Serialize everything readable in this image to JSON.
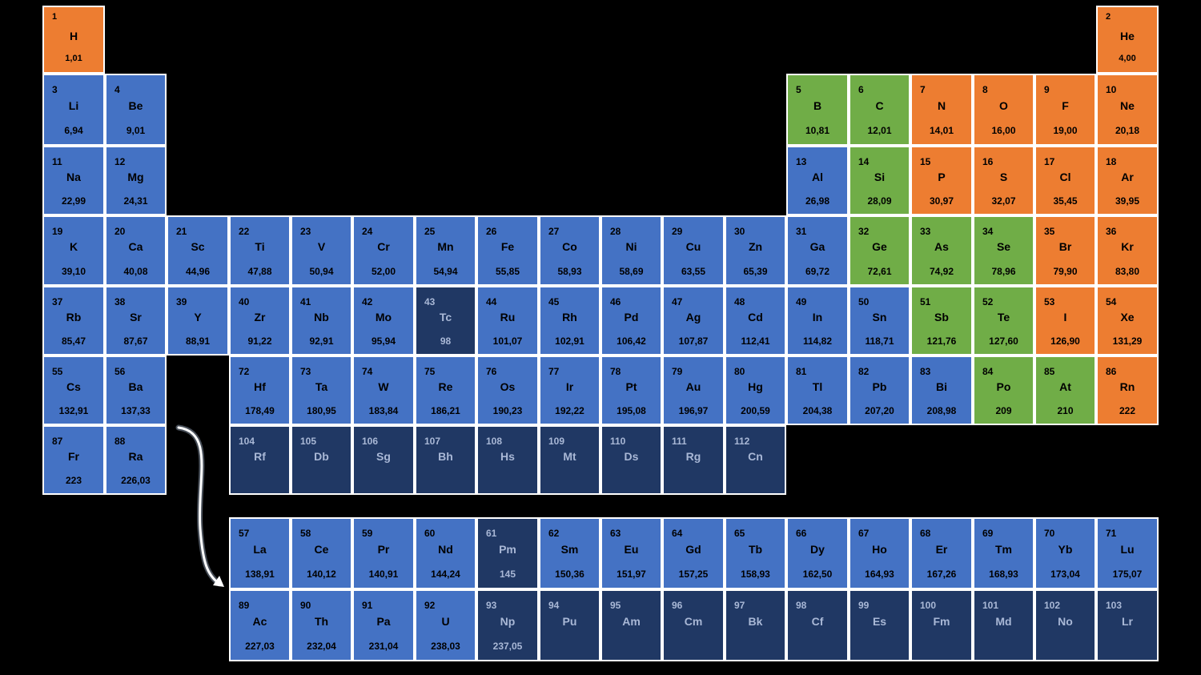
{
  "colors": {
    "background": "#000000",
    "border": "#ffffff",
    "blue": "#4472c4",
    "navy": "#203864",
    "green": "#70ad47",
    "orange": "#ed7d31"
  },
  "elements": [
    {
      "num": "1",
      "sym": "H",
      "mass": "1,01",
      "color": "orange"
    },
    {
      "num": "2",
      "sym": "He",
      "mass": "4,00",
      "color": "orange"
    },
    {
      "num": "3",
      "sym": "Li",
      "mass": "6,94",
      "color": "blue"
    },
    {
      "num": "4",
      "sym": "Be",
      "mass": "9,01",
      "color": "blue"
    },
    {
      "num": "5",
      "sym": "B",
      "mass": "10,81",
      "color": "green"
    },
    {
      "num": "6",
      "sym": "C",
      "mass": "12,01",
      "color": "green"
    },
    {
      "num": "7",
      "sym": "N",
      "mass": "14,01",
      "color": "orange"
    },
    {
      "num": "8",
      "sym": "O",
      "mass": "16,00",
      "color": "orange"
    },
    {
      "num": "9",
      "sym": "F",
      "mass": "19,00",
      "color": "orange"
    },
    {
      "num": "10",
      "sym": "Ne",
      "mass": "20,18",
      "color": "orange"
    },
    {
      "num": "11",
      "sym": "Na",
      "mass": "22,99",
      "color": "blue"
    },
    {
      "num": "12",
      "sym": "Mg",
      "mass": "24,31",
      "color": "blue"
    },
    {
      "num": "13",
      "sym": "Al",
      "mass": "26,98",
      "color": "blue"
    },
    {
      "num": "14",
      "sym": "Si",
      "mass": "28,09",
      "color": "green"
    },
    {
      "num": "15",
      "sym": "P",
      "mass": "30,97",
      "color": "orange"
    },
    {
      "num": "16",
      "sym": "S",
      "mass": "32,07",
      "color": "orange"
    },
    {
      "num": "17",
      "sym": "Cl",
      "mass": "35,45",
      "color": "orange"
    },
    {
      "num": "18",
      "sym": "Ar",
      "mass": "39,95",
      "color": "orange"
    },
    {
      "num": "19",
      "sym": "K",
      "mass": "39,10",
      "color": "blue"
    },
    {
      "num": "20",
      "sym": "Ca",
      "mass": "40,08",
      "color": "blue"
    },
    {
      "num": "21",
      "sym": "Sc",
      "mass": "44,96",
      "color": "blue"
    },
    {
      "num": "22",
      "sym": "Ti",
      "mass": "47,88",
      "color": "blue"
    },
    {
      "num": "23",
      "sym": "V",
      "mass": "50,94",
      "color": "blue"
    },
    {
      "num": "24",
      "sym": "Cr",
      "mass": "52,00",
      "color": "blue"
    },
    {
      "num": "25",
      "sym": "Mn",
      "mass": "54,94",
      "color": "blue"
    },
    {
      "num": "26",
      "sym": "Fe",
      "mass": "55,85",
      "color": "blue"
    },
    {
      "num": "27",
      "sym": "Co",
      "mass": "58,93",
      "color": "blue"
    },
    {
      "num": "28",
      "sym": "Ni",
      "mass": "58,69",
      "color": "blue"
    },
    {
      "num": "29",
      "sym": "Cu",
      "mass": "63,55",
      "color": "blue"
    },
    {
      "num": "30",
      "sym": "Zn",
      "mass": "65,39",
      "color": "blue"
    },
    {
      "num": "31",
      "sym": "Ga",
      "mass": "69,72",
      "color": "blue"
    },
    {
      "num": "32",
      "sym": "Ge",
      "mass": "72,61",
      "color": "green"
    },
    {
      "num": "33",
      "sym": "As",
      "mass": "74,92",
      "color": "green"
    },
    {
      "num": "34",
      "sym": "Se",
      "mass": "78,96",
      "color": "green"
    },
    {
      "num": "35",
      "sym": "Br",
      "mass": "79,90",
      "color": "orange"
    },
    {
      "num": "36",
      "sym": "Kr",
      "mass": "83,80",
      "color": "orange"
    },
    {
      "num": "37",
      "sym": "Rb",
      "mass": "85,47",
      "color": "blue"
    },
    {
      "num": "38",
      "sym": "Sr",
      "mass": "87,67",
      "color": "blue"
    },
    {
      "num": "39",
      "sym": "Y",
      "mass": "88,91",
      "color": "blue"
    },
    {
      "num": "40",
      "sym": "Zr",
      "mass": "91,22",
      "color": "blue"
    },
    {
      "num": "41",
      "sym": "Nb",
      "mass": "92,91",
      "color": "blue"
    },
    {
      "num": "42",
      "sym": "Mo",
      "mass": "95,94",
      "color": "blue"
    },
    {
      "num": "43",
      "sym": "Tc",
      "mass": "98",
      "color": "navy"
    },
    {
      "num": "44",
      "sym": "Ru",
      "mass": "101,07",
      "color": "blue"
    },
    {
      "num": "45",
      "sym": "Rh",
      "mass": "102,91",
      "color": "blue"
    },
    {
      "num": "46",
      "sym": "Pd",
      "mass": "106,42",
      "color": "blue"
    },
    {
      "num": "47",
      "sym": "Ag",
      "mass": "107,87",
      "color": "blue"
    },
    {
      "num": "48",
      "sym": "Cd",
      "mass": "112,41",
      "color": "blue"
    },
    {
      "num": "49",
      "sym": "In",
      "mass": "114,82",
      "color": "blue"
    },
    {
      "num": "50",
      "sym": "Sn",
      "mass": "118,71",
      "color": "blue"
    },
    {
      "num": "51",
      "sym": "Sb",
      "mass": "121,76",
      "color": "green"
    },
    {
      "num": "52",
      "sym": "Te",
      "mass": "127,60",
      "color": "green"
    },
    {
      "num": "53",
      "sym": "I",
      "mass": "126,90",
      "color": "orange"
    },
    {
      "num": "54",
      "sym": "Xe",
      "mass": "131,29",
      "color": "orange"
    },
    {
      "num": "55",
      "sym": "Cs",
      "mass": "132,91",
      "color": "blue"
    },
    {
      "num": "56",
      "sym": "Ba",
      "mass": "137,33",
      "color": "blue"
    },
    {
      "num": "72",
      "sym": "Hf",
      "mass": "178,49",
      "color": "blue"
    },
    {
      "num": "73",
      "sym": "Ta",
      "mass": "180,95",
      "color": "blue"
    },
    {
      "num": "74",
      "sym": "W",
      "mass": "183,84",
      "color": "blue"
    },
    {
      "num": "75",
      "sym": "Re",
      "mass": "186,21",
      "color": "blue"
    },
    {
      "num": "76",
      "sym": "Os",
      "mass": "190,23",
      "color": "blue"
    },
    {
      "num": "77",
      "sym": "Ir",
      "mass": "192,22",
      "color": "blue"
    },
    {
      "num": "78",
      "sym": "Pt",
      "mass": "195,08",
      "color": "blue"
    },
    {
      "num": "79",
      "sym": "Au",
      "mass": "196,97",
      "color": "blue"
    },
    {
      "num": "80",
      "sym": "Hg",
      "mass": "200,59",
      "color": "blue"
    },
    {
      "num": "81",
      "sym": "Tl",
      "mass": "204,38",
      "color": "blue"
    },
    {
      "num": "82",
      "sym": "Pb",
      "mass": "207,20",
      "color": "blue"
    },
    {
      "num": "83",
      "sym": "Bi",
      "mass": "208,98",
      "color": "blue"
    },
    {
      "num": "84",
      "sym": "Po",
      "mass": "209",
      "color": "green"
    },
    {
      "num": "85",
      "sym": "At",
      "mass": "210",
      "color": "green"
    },
    {
      "num": "86",
      "sym": "Rn",
      "mass": "222",
      "color": "orange"
    },
    {
      "num": "87",
      "sym": "Fr",
      "mass": "223",
      "color": "blue"
    },
    {
      "num": "88",
      "sym": "Ra",
      "mass": "226,03",
      "color": "blue"
    },
    {
      "num": "104",
      "sym": "Rf",
      "mass": "",
      "color": "navy"
    },
    {
      "num": "105",
      "sym": "Db",
      "mass": "",
      "color": "navy"
    },
    {
      "num": "106",
      "sym": "Sg",
      "mass": "",
      "color": "navy"
    },
    {
      "num": "107",
      "sym": "Bh",
      "mass": "",
      "color": "navy"
    },
    {
      "num": "108",
      "sym": "Hs",
      "mass": "",
      "color": "navy"
    },
    {
      "num": "109",
      "sym": "Mt",
      "mass": "",
      "color": "navy"
    },
    {
      "num": "110",
      "sym": "Ds",
      "mass": "",
      "color": "navy"
    },
    {
      "num": "111",
      "sym": "Rg",
      "mass": "",
      "color": "navy"
    },
    {
      "num": "112",
      "sym": "Cn",
      "mass": "",
      "color": "navy"
    },
    {
      "num": "57",
      "sym": "La",
      "mass": "138,91",
      "color": "blue"
    },
    {
      "num": "58",
      "sym": "Ce",
      "mass": "140,12",
      "color": "blue"
    },
    {
      "num": "59",
      "sym": "Pr",
      "mass": "140,91",
      "color": "blue"
    },
    {
      "num": "60",
      "sym": "Nd",
      "mass": "144,24",
      "color": "blue"
    },
    {
      "num": "61",
      "sym": "Pm",
      "mass": "145",
      "color": "navy"
    },
    {
      "num": "62",
      "sym": "Sm",
      "mass": "150,36",
      "color": "blue"
    },
    {
      "num": "63",
      "sym": "Eu",
      "mass": "151,97",
      "color": "blue"
    },
    {
      "num": "64",
      "sym": "Gd",
      "mass": "157,25",
      "color": "blue"
    },
    {
      "num": "65",
      "sym": "Tb",
      "mass": "158,93",
      "color": "blue"
    },
    {
      "num": "66",
      "sym": "Dy",
      "mass": "162,50",
      "color": "blue"
    },
    {
      "num": "67",
      "sym": "Ho",
      "mass": "164,93",
      "color": "blue"
    },
    {
      "num": "68",
      "sym": "Er",
      "mass": "167,26",
      "color": "blue"
    },
    {
      "num": "69",
      "sym": "Tm",
      "mass": "168,93",
      "color": "blue"
    },
    {
      "num": "70",
      "sym": "Yb",
      "mass": "173,04",
      "color": "blue"
    },
    {
      "num": "71",
      "sym": "Lu",
      "mass": "175,07",
      "color": "blue"
    },
    {
      "num": "89",
      "sym": "Ac",
      "mass": "227,03",
      "color": "blue"
    },
    {
      "num": "90",
      "sym": "Th",
      "mass": "232,04",
      "color": "blue"
    },
    {
      "num": "91",
      "sym": "Pa",
      "mass": "231,04",
      "color": "blue"
    },
    {
      "num": "92",
      "sym": "U",
      "mass": "238,03",
      "color": "blue"
    },
    {
      "num": "93",
      "sym": "Np",
      "mass": "237,05",
      "color": "navy"
    },
    {
      "num": "94",
      "sym": "Pu",
      "mass": "",
      "color": "navy"
    },
    {
      "num": "95",
      "sym": "Am",
      "mass": "",
      "color": "navy"
    },
    {
      "num": "96",
      "sym": "Cm",
      "mass": "",
      "color": "navy"
    },
    {
      "num": "97",
      "sym": "Bk",
      "mass": "",
      "color": "navy"
    },
    {
      "num": "98",
      "sym": "Cf",
      "mass": "",
      "color": "navy"
    },
    {
      "num": "99",
      "sym": "Es",
      "mass": "",
      "color": "navy"
    },
    {
      "num": "100",
      "sym": "Fm",
      "mass": "",
      "color": "navy"
    },
    {
      "num": "101",
      "sym": "Md",
      "mass": "",
      "color": "navy"
    },
    {
      "num": "102",
      "sym": "No",
      "mass": "",
      "color": "navy"
    },
    {
      "num": "103",
      "sym": "Lr",
      "mass": "",
      "color": "navy"
    }
  ]
}
